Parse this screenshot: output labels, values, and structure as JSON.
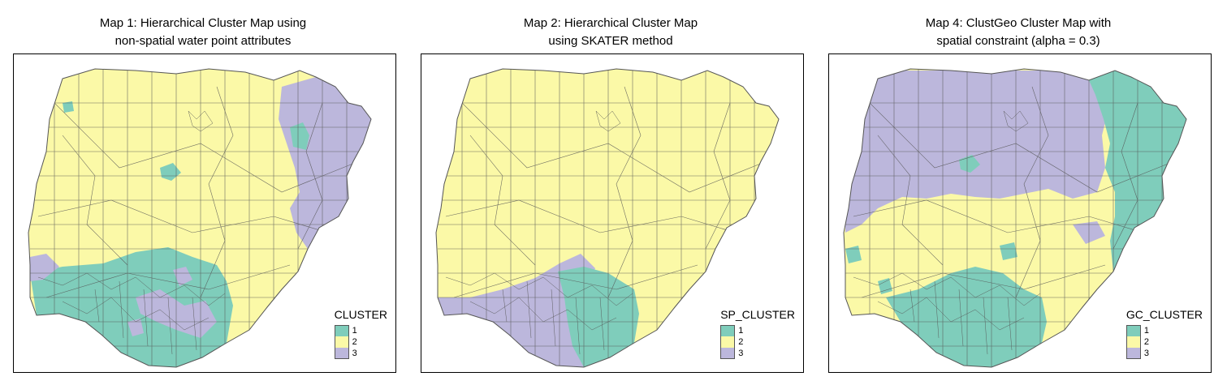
{
  "colors": {
    "cluster_1": "#7fcdbb",
    "cluster_2": "#fbf9a7",
    "cluster_3": "#bcb7dc",
    "border": "#555555"
  },
  "maps": [
    {
      "title_line1": "Map 1: Hierarchical Cluster Map using",
      "title_line2": "non-spatial water point attributes",
      "legend_title": "CLUSTER",
      "legend_labels": [
        "1",
        "2",
        "3"
      ]
    },
    {
      "title_line1": "Map 2: Hierarchical Cluster Map",
      "title_line2": "using SKATER method",
      "legend_title": "SP_CLUSTER",
      "legend_labels": [
        "1",
        "2",
        "3"
      ]
    },
    {
      "title_line1": "Map 4: ClustGeo Cluster Map with",
      "title_line2": "spatial constraint (alpha = 0.3)",
      "legend_title": "GC_CLUSTER",
      "legend_labels": [
        "1",
        "2",
        "3"
      ]
    }
  ]
}
